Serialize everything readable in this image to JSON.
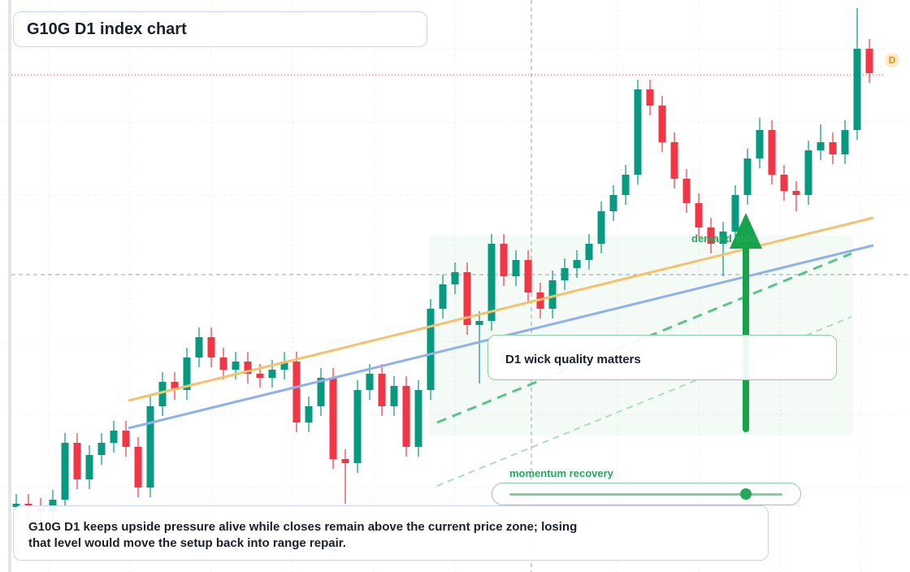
{
  "header": {
    "title": "G10G D1 index chart"
  },
  "chart_data": {
    "type": "candlestick",
    "ylim": [
      0,
      704
    ],
    "up_color": "#089981",
    "down_color": "#f23645",
    "candles": [
      [
        80,
        96,
        68,
        84
      ],
      [
        84,
        96,
        67,
        79
      ],
      [
        79,
        91,
        62,
        74
      ],
      [
        74,
        101,
        62,
        89
      ],
      [
        89,
        171,
        77,
        159
      ],
      [
        159,
        171,
        102,
        114
      ],
      [
        114,
        156,
        102,
        144
      ],
      [
        144,
        171,
        132,
        159
      ],
      [
        159,
        186,
        147,
        174
      ],
      [
        174,
        186,
        142,
        154
      ],
      [
        154,
        166,
        92,
        104
      ],
      [
        104,
        216,
        92,
        204
      ],
      [
        204,
        246,
        192,
        234
      ],
      [
        234,
        246,
        212,
        224
      ],
      [
        224,
        276,
        212,
        264
      ],
      [
        264,
        301,
        252,
        289
      ],
      [
        289,
        301,
        252,
        264
      ],
      [
        264,
        276,
        237,
        249
      ],
      [
        249,
        271,
        237,
        259
      ],
      [
        259,
        271,
        232,
        244
      ],
      [
        244,
        256,
        227,
        239
      ],
      [
        239,
        261,
        227,
        249
      ],
      [
        249,
        271,
        237,
        259
      ],
      [
        259,
        271,
        172,
        184
      ],
      [
        184,
        216,
        172,
        204
      ],
      [
        204,
        251,
        192,
        239
      ],
      [
        239,
        251,
        127,
        139
      ],
      [
        139,
        151,
        84,
        134
      ],
      [
        134,
        236,
        122,
        224
      ],
      [
        224,
        256,
        212,
        244
      ],
      [
        244,
        256,
        192,
        204
      ],
      [
        204,
        241,
        192,
        229
      ],
      [
        229,
        241,
        142,
        154
      ],
      [
        154,
        236,
        142,
        224
      ],
      [
        224,
        336,
        212,
        324
      ],
      [
        324,
        366,
        312,
        354
      ],
      [
        354,
        381,
        342,
        369
      ],
      [
        369,
        381,
        292,
        304
      ],
      [
        304,
        321,
        232,
        309
      ],
      [
        309,
        416,
        297,
        404
      ],
      [
        404,
        416,
        352,
        364
      ],
      [
        364,
        396,
        352,
        384
      ],
      [
        384,
        396,
        332,
        344
      ],
      [
        344,
        356,
        312,
        324
      ],
      [
        324,
        371,
        312,
        359
      ],
      [
        359,
        386,
        347,
        374
      ],
      [
        374,
        396,
        362,
        384
      ],
      [
        384,
        416,
        372,
        404
      ],
      [
        404,
        456,
        392,
        444
      ],
      [
        444,
        476,
        432,
        464
      ],
      [
        464,
        501,
        452,
        489
      ],
      [
        489,
        606,
        477,
        594
      ],
      [
        594,
        606,
        562,
        574
      ],
      [
        574,
        586,
        517,
        529
      ],
      [
        529,
        541,
        472,
        484
      ],
      [
        484,
        496,
        442,
        454
      ],
      [
        454,
        466,
        412,
        424
      ],
      [
        424,
        436,
        392,
        404
      ],
      [
        404,
        431,
        364,
        419
      ],
      [
        419,
        476,
        407,
        464
      ],
      [
        464,
        521,
        452,
        509
      ],
      [
        509,
        559,
        497,
        544
      ],
      [
        544,
        556,
        477,
        489
      ],
      [
        489,
        501,
        457,
        469
      ],
      [
        469,
        481,
        444,
        464
      ],
      [
        464,
        531,
        452,
        519
      ],
      [
        519,
        551,
        507,
        529
      ],
      [
        529,
        541,
        502,
        514
      ],
      [
        514,
        556,
        502,
        544
      ],
      [
        544,
        694,
        532,
        644
      ],
      [
        644,
        656,
        602,
        614
      ]
    ]
  },
  "annotations": {
    "zone": "demand side",
    "callout": "D1 wick quality matters",
    "slider": "momentum recovery",
    "badge": "D",
    "note": "G10G D1 keeps upside pressure alive while closes remain above the current price zone; losing that level would move the setup back into range repair."
  }
}
